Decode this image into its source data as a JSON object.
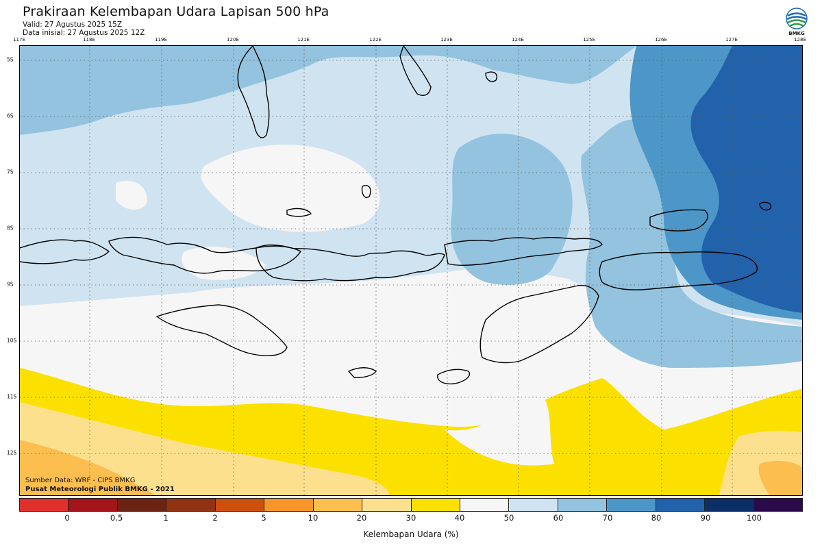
{
  "header": {
    "title": "Prakiraan Kelembapan Udara Lapisan 500 hPa",
    "valid": "Valid: 27 Agustus 2025 15Z",
    "init": "Data inisial: 27 Agustus 2025 12Z"
  },
  "logo": {
    "text": "BMKG",
    "icon": "bmkg-logo-icon",
    "colors": [
      "#1c6db5",
      "#2e9a46"
    ]
  },
  "map": {
    "lon_labels": [
      "117E",
      "118E",
      "119E",
      "120E",
      "121E",
      "122E",
      "123E",
      "124E",
      "125E",
      "126E",
      "127E",
      "128E"
    ],
    "lat_labels": [
      "5S",
      "6S",
      "7S",
      "8S",
      "9S",
      "10S",
      "11S",
      "12S"
    ],
    "grid": "dotted",
    "region": "Nusa Tenggara / Sulawesi Selatan / Laut Flores",
    "colors": {
      "coast": "#000000",
      "background": "#f6f6f6"
    }
  },
  "credits": {
    "source": "Sumber Data: WRF - CIPS BMKG",
    "org": "Pusat Meteorologi Publik BMKG - 2021"
  },
  "colorbar": {
    "title": "Kelembapan Udara (%)",
    "labels": [
      "0",
      "0.5",
      "1",
      "2",
      "5",
      "10",
      "20",
      "30",
      "40",
      "50",
      "60",
      "70",
      "80",
      "90",
      "100"
    ],
    "colors": [
      "#e0302b",
      "#a3151a",
      "#6b2414",
      "#8f3311",
      "#cc4f0c",
      "#f7952b",
      "#fcbe4f",
      "#fde08d",
      "#fce100",
      "#f6f6f6",
      "#cfe3f0",
      "#93c3de",
      "#4c97c8",
      "#2162aa",
      "#0b2f66",
      "#2a0a4b"
    ]
  }
}
